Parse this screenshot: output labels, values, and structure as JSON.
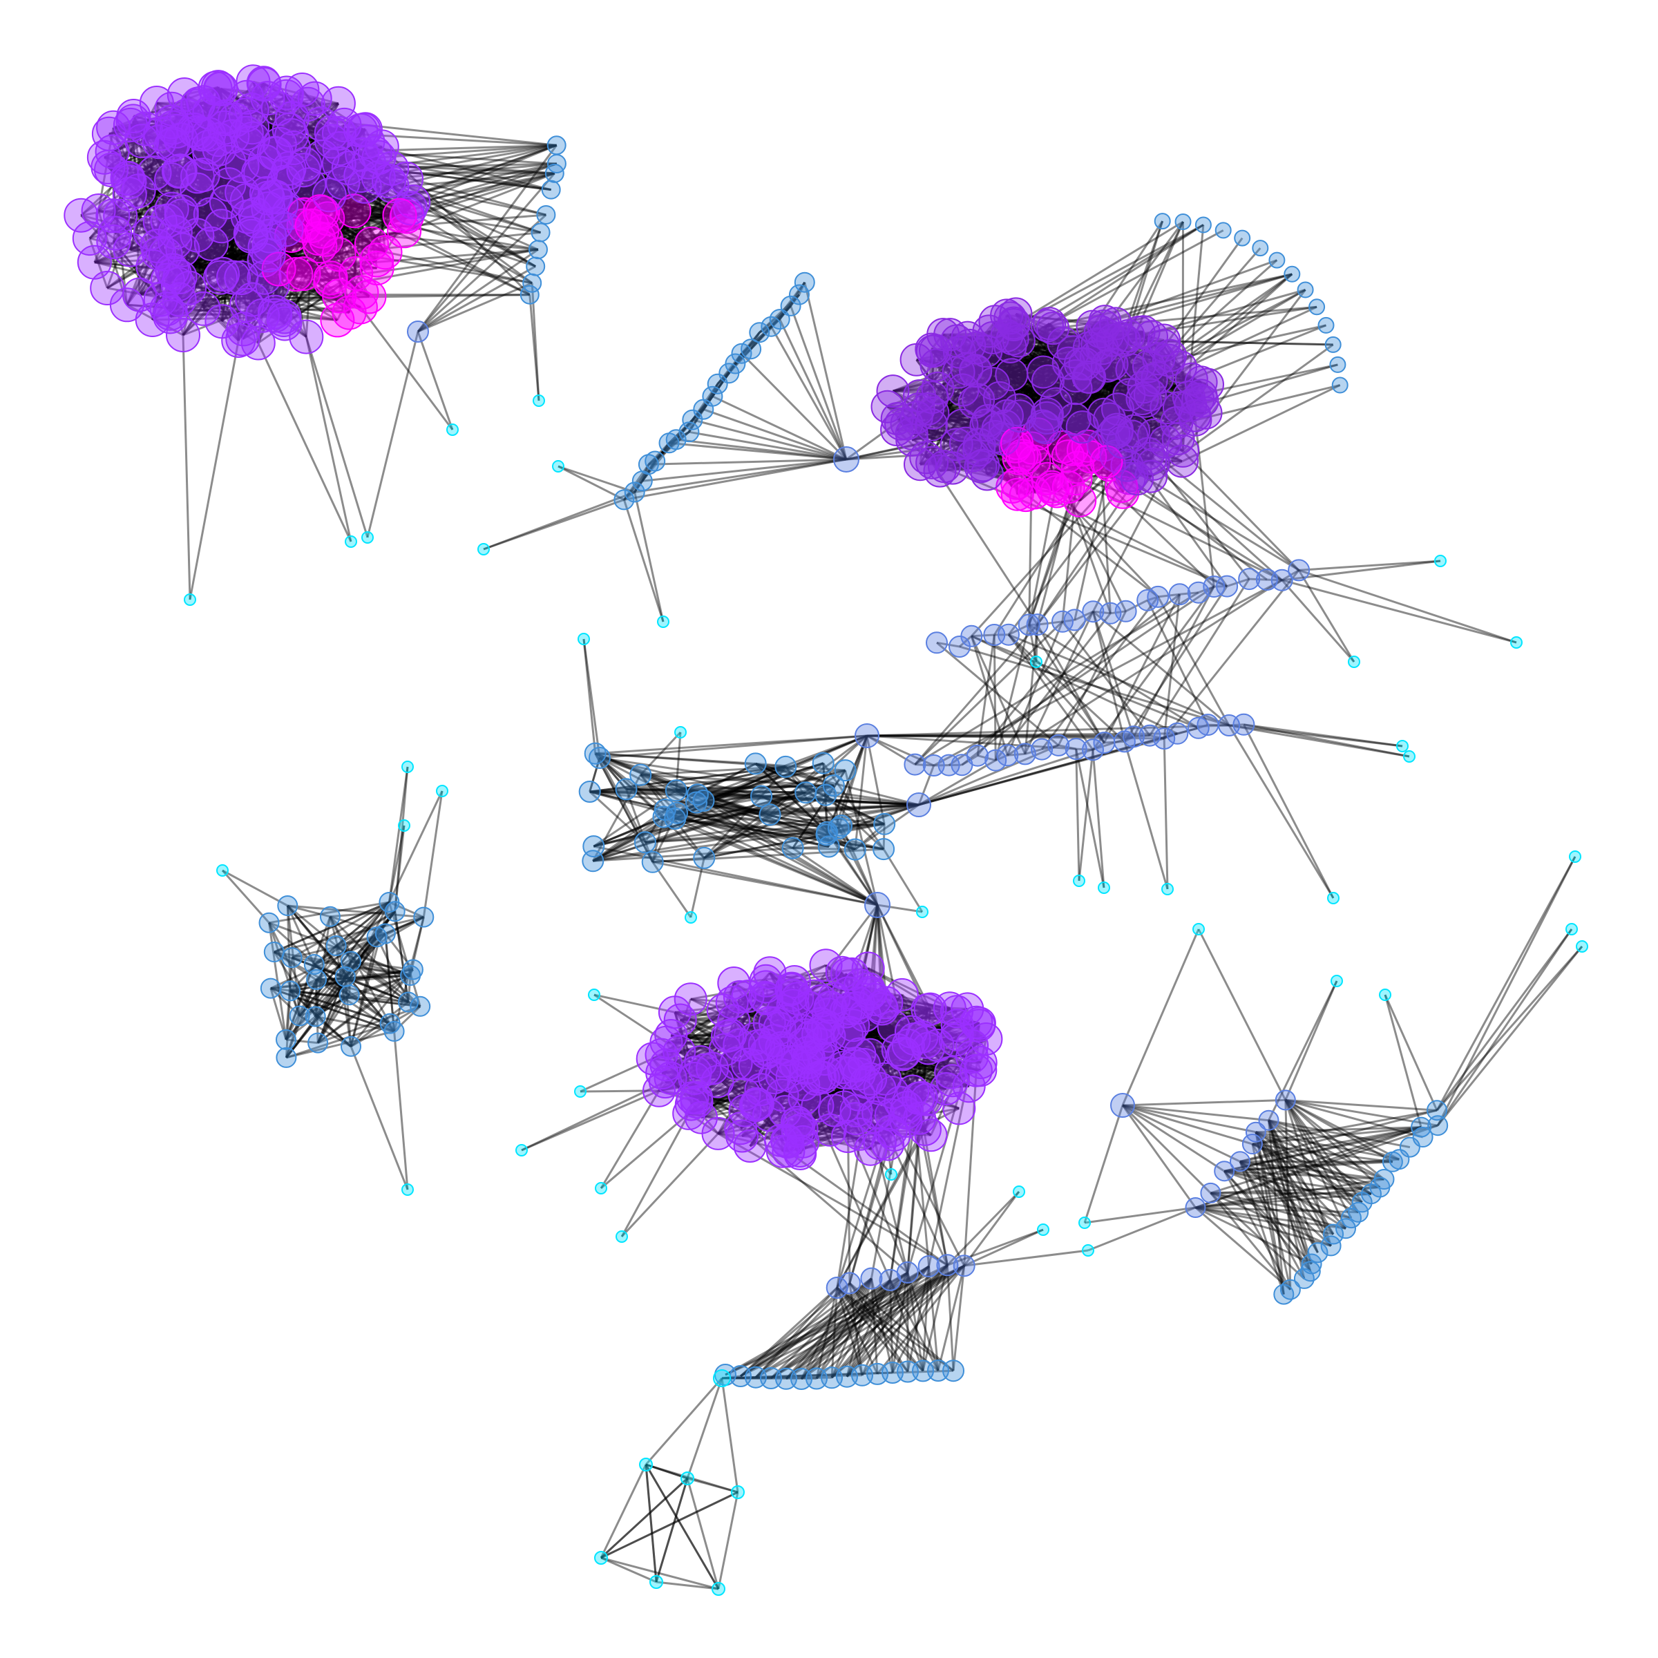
{
  "graph": {
    "type": "network",
    "directed": false,
    "node_style": {
      "fill_opacity": 0.38,
      "degree_low_color": "#00e5ff",
      "degree_mid_color": "#3f8fd8",
      "degree_high_color": "#9b30ff",
      "hub_color": "#ff00ff"
    },
    "edge_style": {
      "color": "#000000",
      "opacity": 0.45
    },
    "communities": [
      {
        "id": "A",
        "kind": "dense-core",
        "color": "#9b30ff",
        "highlight_color": "#ff00ff"
      },
      {
        "id": "B",
        "kind": "dense-core",
        "color": "#8a2be2",
        "highlight_color": "#ff00ff"
      },
      {
        "id": "C",
        "kind": "dense-core",
        "color": "#9b30ff",
        "highlight_color": "#cc00ff"
      },
      {
        "id": "D",
        "kind": "fan",
        "color": "#3f8fd8"
      },
      {
        "id": "E",
        "kind": "fan",
        "color": "#3f8fd8"
      },
      {
        "id": "F",
        "kind": "bridge-band",
        "color": "#5a7fe0"
      },
      {
        "id": "G",
        "kind": "bridge-band",
        "color": "#5a7fe0"
      },
      {
        "id": "H",
        "kind": "mesh",
        "color": "#3f8fd8"
      },
      {
        "id": "I",
        "kind": "fan",
        "color": "#3f8fd8"
      },
      {
        "id": "J",
        "kind": "fan",
        "color": "#3f8fd8"
      },
      {
        "id": "K",
        "kind": "arc",
        "color": "#3f8fd8"
      },
      {
        "id": "L",
        "kind": "leaf-cluster",
        "color": "#00e5ff"
      },
      {
        "id": "M",
        "kind": "leaf-cluster",
        "color": "#00e5ff"
      }
    ]
  }
}
